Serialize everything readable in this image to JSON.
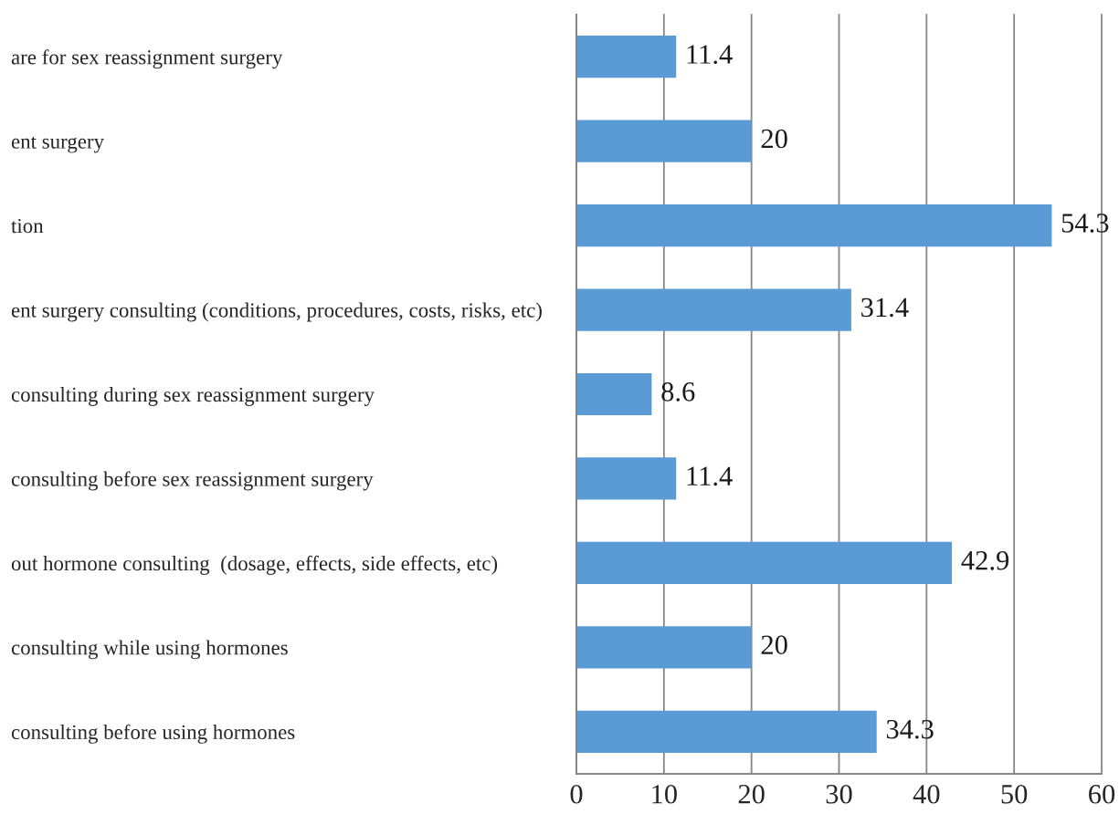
{
  "chart_data": {
    "type": "bar",
    "orientation": "horizontal",
    "categories": [
      "are for sex reassignment surgery",
      "ent surgery",
      "tion",
      "ent surgery consulting (conditions, procedures, costs, risks, etc)",
      "consulting during sex reassignment surgery",
      "consulting before sex reassignment surgery",
      "out hormone consulting  (dosage, effects, side effects, etc)",
      "consulting while using hormones",
      "consulting before using hormones"
    ],
    "values": [
      11.4,
      20,
      54.3,
      31.4,
      8.6,
      11.4,
      42.9,
      20,
      34.3
    ],
    "color": "#5b9bd5",
    "xlim": [
      0,
      60
    ],
    "xticks": [
      0,
      10,
      20,
      30,
      40,
      50,
      60
    ],
    "grid": "x",
    "data_labels": true
  }
}
